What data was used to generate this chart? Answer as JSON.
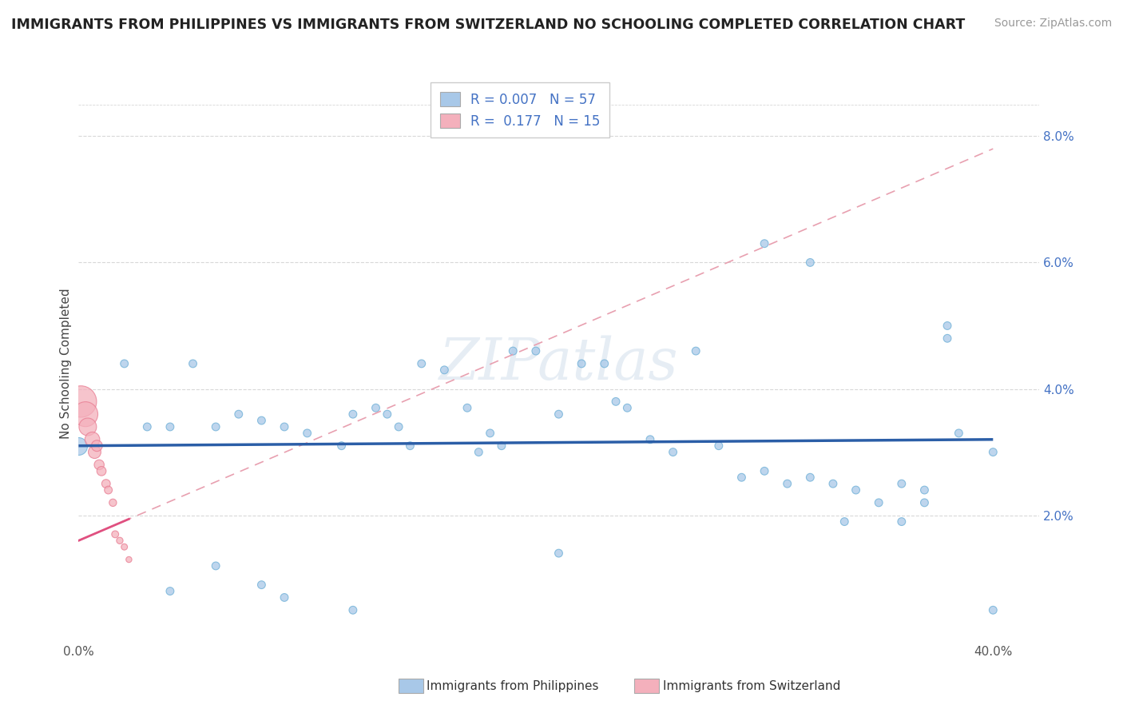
{
  "title": "IMMIGRANTS FROM PHILIPPINES VS IMMIGRANTS FROM SWITZERLAND NO SCHOOLING COMPLETED CORRELATION CHART",
  "source": "Source: ZipAtlas.com",
  "ylabel": "No Schooling Completed",
  "x_label_philippines": "Immigrants from Philippines",
  "x_label_switzerland": "Immigrants from Switzerland",
  "xlim": [
    0.0,
    0.42
  ],
  "ylim": [
    0.0,
    0.088
  ],
  "x_ticks": [
    0.0,
    0.1,
    0.2,
    0.3,
    0.4
  ],
  "x_tick_labels": [
    "0.0%",
    "",
    "",
    "",
    "40.0%"
  ],
  "y_ticks": [
    0.02,
    0.04,
    0.06,
    0.08
  ],
  "y_tick_labels": [
    "2.0%",
    "4.0%",
    "6.0%",
    "8.0%"
  ],
  "legend_r_blue": "0.007",
  "legend_n_blue": "57",
  "legend_r_pink": "0.177",
  "legend_n_pink": "15",
  "blue_color": "#a8c8e8",
  "blue_edge_color": "#6baed6",
  "pink_color": "#f4b0bc",
  "pink_edge_color": "#e87a90",
  "blue_line_color": "#2b5ea7",
  "pink_line_color": "#e05080",
  "pink_dash_color": "#e8a0b0",
  "blue_points": [
    [
      0.02,
      0.044
    ],
    [
      0.05,
      0.044
    ],
    [
      0.07,
      0.036
    ],
    [
      0.08,
      0.035
    ],
    [
      0.09,
      0.034
    ],
    [
      0.1,
      0.033
    ],
    [
      0.115,
      0.031
    ],
    [
      0.12,
      0.036
    ],
    [
      0.13,
      0.037
    ],
    [
      0.135,
      0.036
    ],
    [
      0.14,
      0.034
    ],
    [
      0.145,
      0.031
    ],
    [
      0.15,
      0.044
    ],
    [
      0.16,
      0.043
    ],
    [
      0.17,
      0.037
    ],
    [
      0.175,
      0.03
    ],
    [
      0.18,
      0.033
    ],
    [
      0.185,
      0.031
    ],
    [
      0.19,
      0.046
    ],
    [
      0.2,
      0.046
    ],
    [
      0.21,
      0.036
    ],
    [
      0.22,
      0.044
    ],
    [
      0.23,
      0.044
    ],
    [
      0.235,
      0.038
    ],
    [
      0.24,
      0.037
    ],
    [
      0.25,
      0.032
    ],
    [
      0.26,
      0.03
    ],
    [
      0.27,
      0.046
    ],
    [
      0.28,
      0.031
    ],
    [
      0.29,
      0.026
    ],
    [
      0.3,
      0.027
    ],
    [
      0.31,
      0.025
    ],
    [
      0.32,
      0.026
    ],
    [
      0.33,
      0.025
    ],
    [
      0.335,
      0.019
    ],
    [
      0.34,
      0.024
    ],
    [
      0.35,
      0.022
    ],
    [
      0.36,
      0.025
    ],
    [
      0.37,
      0.022
    ],
    [
      0.37,
      0.024
    ],
    [
      0.38,
      0.048
    ],
    [
      0.385,
      0.033
    ],
    [
      0.3,
      0.063
    ],
    [
      0.32,
      0.06
    ],
    [
      0.38,
      0.05
    ],
    [
      0.04,
      0.008
    ],
    [
      0.06,
      0.012
    ],
    [
      0.08,
      0.009
    ],
    [
      0.09,
      0.007
    ],
    [
      0.12,
      0.005
    ],
    [
      0.21,
      0.014
    ],
    [
      0.4,
      0.005
    ],
    [
      0.03,
      0.034
    ],
    [
      0.04,
      0.034
    ],
    [
      0.06,
      0.034
    ],
    [
      0.36,
      0.019
    ],
    [
      0.4,
      0.03
    ]
  ],
  "blue_sizes": [
    50,
    50,
    50,
    50,
    50,
    50,
    50,
    50,
    50,
    50,
    50,
    50,
    50,
    50,
    50,
    50,
    50,
    50,
    50,
    50,
    50,
    50,
    50,
    50,
    50,
    50,
    50,
    50,
    50,
    50,
    50,
    50,
    50,
    50,
    50,
    50,
    50,
    50,
    50,
    50,
    50,
    50,
    50,
    50,
    50,
    50,
    50,
    50,
    50,
    50,
    50,
    50,
    50,
    50,
    50,
    50,
    50
  ],
  "blue_large_point": [
    0.0,
    0.031
  ],
  "blue_large_size": 250,
  "pink_points": [
    [
      0.001,
      0.038
    ],
    [
      0.003,
      0.036
    ],
    [
      0.004,
      0.034
    ],
    [
      0.006,
      0.032
    ],
    [
      0.007,
      0.03
    ],
    [
      0.008,
      0.031
    ],
    [
      0.009,
      0.028
    ],
    [
      0.01,
      0.027
    ],
    [
      0.012,
      0.025
    ],
    [
      0.013,
      0.024
    ],
    [
      0.015,
      0.022
    ],
    [
      0.016,
      0.017
    ],
    [
      0.018,
      0.016
    ],
    [
      0.02,
      0.015
    ],
    [
      0.022,
      0.013
    ]
  ],
  "pink_sizes": [
    800,
    500,
    250,
    180,
    130,
    100,
    80,
    70,
    60,
    50,
    45,
    40,
    35,
    32,
    28
  ],
  "blue_line_y0": 0.031,
  "blue_line_y1": 0.032,
  "pink_line_slope": 0.155,
  "pink_line_intercept": 0.016,
  "watermark": "ZIPatlas",
  "background_color": "#ffffff",
  "grid_color": "#d8d8d8"
}
